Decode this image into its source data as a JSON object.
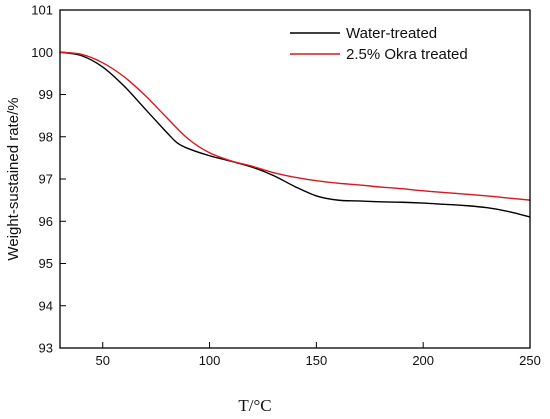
{
  "chart_data": {
    "type": "line",
    "title": "",
    "xlabel": "T/°C",
    "ylabel": "Weight-sustained rate/%",
    "xlim": [
      30,
      250
    ],
    "ylim": [
      93,
      101
    ],
    "xticks": [
      50,
      100,
      150,
      200,
      250
    ],
    "yticks": [
      93,
      94,
      95,
      96,
      97,
      98,
      99,
      100,
      101
    ],
    "grid": false,
    "legend_position": "top-right",
    "series": [
      {
        "name": "Water-treated",
        "color": "#000000",
        "x": [
          30,
          40,
          50,
          60,
          70,
          80,
          85,
          90,
          100,
          110,
          120,
          130,
          140,
          150,
          160,
          170,
          180,
          190,
          200,
          210,
          220,
          230,
          240,
          250
        ],
        "y": [
          100.0,
          99.92,
          99.65,
          99.2,
          98.65,
          98.1,
          97.85,
          97.72,
          97.55,
          97.42,
          97.28,
          97.08,
          96.82,
          96.6,
          96.5,
          96.48,
          96.46,
          96.45,
          96.43,
          96.4,
          96.37,
          96.32,
          96.23,
          96.1
        ]
      },
      {
        "name": "2.5% Okra treated",
        "color": "#e0141c",
        "x": [
          30,
          40,
          50,
          60,
          70,
          80,
          90,
          100,
          110,
          120,
          130,
          140,
          150,
          160,
          170,
          180,
          190,
          200,
          210,
          220,
          230,
          240,
          250
        ],
        "y": [
          100.0,
          99.95,
          99.75,
          99.42,
          98.97,
          98.45,
          97.95,
          97.62,
          97.43,
          97.3,
          97.15,
          97.04,
          96.96,
          96.9,
          96.86,
          96.81,
          96.77,
          96.72,
          96.68,
          96.64,
          96.6,
          96.55,
          96.5
        ]
      }
    ]
  }
}
